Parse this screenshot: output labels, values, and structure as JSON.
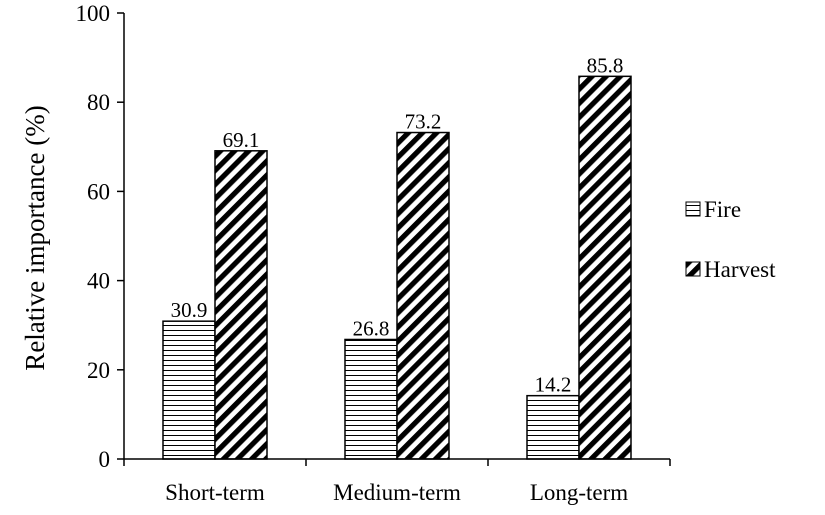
{
  "chart_data": {
    "type": "bar",
    "categories": [
      "Short-term",
      "Medium-term",
      "Long-term"
    ],
    "series": [
      {
        "name": "Fire",
        "values": [
          30.9,
          26.8,
          14.2
        ],
        "value_labels": [
          "30.9",
          "26.8",
          "14.2"
        ],
        "pattern": "horizontal-lines"
      },
      {
        "name": "Harvest",
        "values": [
          69.1,
          73.2,
          85.8
        ],
        "value_labels": [
          "69.1",
          "73.2",
          "85.8"
        ],
        "pattern": "diagonal-stripes"
      }
    ],
    "title": "",
    "xlabel": "",
    "ylabel": "Relative importance (%)",
    "ylim": [
      0,
      100
    ],
    "yticks": [
      "0",
      "20",
      "40",
      "60",
      "80",
      "100"
    ],
    "grid": false,
    "legend": "right",
    "colors": {
      "bar_stroke": "#000000",
      "fire_fill": "#ffffff",
      "harvest_fill": "#000000"
    }
  }
}
